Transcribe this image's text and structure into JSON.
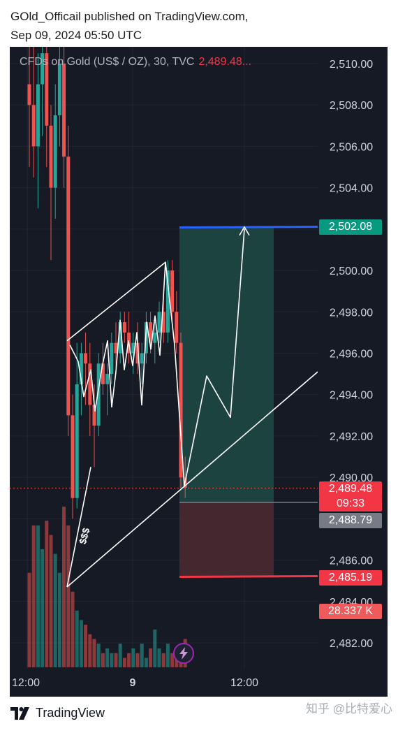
{
  "header": {
    "line1": "GOld_Officail published on TradingView.com,",
    "line2": "Sep 09, 2024 05:50 UTC"
  },
  "legend": {
    "title": "CFDs on Gold (US$ / OZ), 30, TVC",
    "price": "2,489.48..."
  },
  "labels": {
    "target": "2,502.08",
    "last_price": "2,489.48",
    "countdown": "09:33",
    "entry": "2,488.79",
    "stop": "2,485.19",
    "volume": "28.337 K",
    "dollar_marks": "$$$"
  },
  "footer": {
    "brand": "TradingView"
  },
  "watermark": "知乎 @比特爱心",
  "colors": {
    "up": "#26a69a",
    "down": "#ef5350",
    "target_line": "#2962ff",
    "stop_line": "#f23645",
    "profit_zone": "#1f4b47",
    "loss_zone": "#4a2a31",
    "last_price_bg": "#f23645",
    "entry_bg": "#787b86",
    "target_bg": "#089981"
  },
  "chart_data": {
    "type": "candlestick",
    "title": "CFDs on Gold (US$ / OZ), 30, TVC",
    "ylim": [
      2481,
      2511.5
    ],
    "y_ticks": [
      "2,482.00",
      "2,484.00",
      "2,486.00",
      "2,488.00",
      "2,490.00",
      "2,492.00",
      "2,494.00",
      "2,496.00",
      "2,498.00",
      "2,500.00",
      "2,502.00",
      "2,504.00",
      "2,506.00",
      "2,508.00",
      "2,510.00"
    ],
    "x_ticks": [
      "12:00",
      "9",
      "12:00"
    ],
    "grid": true,
    "candles": [
      {
        "o": 2509.0,
        "h": 2511.5,
        "l": 2505.0,
        "c": 2508.0
      },
      {
        "o": 2508.0,
        "h": 2511.0,
        "l": 2504.5,
        "c": 2506.0
      },
      {
        "o": 2506.0,
        "h": 2510.5,
        "l": 2503.0,
        "c": 2509.0
      },
      {
        "o": 2509.0,
        "h": 2511.0,
        "l": 2506.5,
        "c": 2510.5
      },
      {
        "o": 2510.5,
        "h": 2511.0,
        "l": 2505.0,
        "c": 2507.0
      },
      {
        "o": 2507.0,
        "h": 2508.0,
        "l": 2500.5,
        "c": 2504.0
      },
      {
        "o": 2504.0,
        "h": 2509.0,
        "l": 2502.5,
        "c": 2507.5
      },
      {
        "o": 2507.5,
        "h": 2511.0,
        "l": 2506.0,
        "c": 2510.0
      },
      {
        "o": 2510.0,
        "h": 2511.0,
        "l": 2504.0,
        "c": 2505.5
      },
      {
        "o": 2505.5,
        "h": 2507.0,
        "l": 2492.0,
        "c": 2493.0
      },
      {
        "o": 2493.0,
        "h": 2494.0,
        "l": 2488.0,
        "c": 2489.0
      },
      {
        "o": 2489.0,
        "h": 2496.5,
        "l": 2488.5,
        "c": 2494.5
      },
      {
        "o": 2494.5,
        "h": 2496.5,
        "l": 2493.0,
        "c": 2496.0
      },
      {
        "o": 2496.0,
        "h": 2497.0,
        "l": 2493.5,
        "c": 2495.5
      },
      {
        "o": 2495.5,
        "h": 2496.5,
        "l": 2492.0,
        "c": 2493.5
      },
      {
        "o": 2493.5,
        "h": 2494.5,
        "l": 2490.5,
        "c": 2492.5
      },
      {
        "o": 2492.5,
        "h": 2496.0,
        "l": 2492.0,
        "c": 2495.5
      },
      {
        "o": 2495.5,
        "h": 2496.5,
        "l": 2494.0,
        "c": 2494.5
      },
      {
        "o": 2494.5,
        "h": 2495.5,
        "l": 2493.0,
        "c": 2495.0
      },
      {
        "o": 2495.0,
        "h": 2497.0,
        "l": 2494.5,
        "c": 2496.5
      },
      {
        "o": 2496.5,
        "h": 2497.5,
        "l": 2495.0,
        "c": 2496.0
      },
      {
        "o": 2496.0,
        "h": 2498.0,
        "l": 2495.5,
        "c": 2497.5
      },
      {
        "o": 2497.5,
        "h": 2498.0,
        "l": 2496.5,
        "c": 2497.0
      },
      {
        "o": 2497.0,
        "h": 2498.0,
        "l": 2495.5,
        "c": 2496.0
      },
      {
        "o": 2496.0,
        "h": 2497.0,
        "l": 2495.0,
        "c": 2496.5
      },
      {
        "o": 2496.5,
        "h": 2497.5,
        "l": 2495.0,
        "c": 2495.5
      },
      {
        "o": 2495.5,
        "h": 2496.5,
        "l": 2494.5,
        "c": 2496.0
      },
      {
        "o": 2496.0,
        "h": 2498.0,
        "l": 2495.5,
        "c": 2497.5
      },
      {
        "o": 2497.5,
        "h": 2498.0,
        "l": 2496.0,
        "c": 2496.5
      },
      {
        "o": 2496.5,
        "h": 2497.5,
        "l": 2495.5,
        "c": 2497.0
      },
      {
        "o": 2497.0,
        "h": 2498.5,
        "l": 2496.5,
        "c": 2498.0
      },
      {
        "o": 2498.0,
        "h": 2499.0,
        "l": 2496.5,
        "c": 2497.0
      },
      {
        "o": 2497.0,
        "h": 2500.5,
        "l": 2496.5,
        "c": 2500.0
      },
      {
        "o": 2500.0,
        "h": 2500.5,
        "l": 2497.5,
        "c": 2498.0
      },
      {
        "o": 2498.0,
        "h": 2499.0,
        "l": 2496.0,
        "c": 2496.5
      },
      {
        "o": 2496.5,
        "h": 2497.0,
        "l": 2489.5,
        "c": 2490.0
      },
      {
        "o": 2490.0,
        "h": 2491.0,
        "l": 2489.0,
        "c": 2489.5
      }
    ],
    "volumes": [
      20,
      30,
      30,
      25,
      31,
      28,
      24,
      20,
      34,
      30,
      16,
      12,
      10,
      9,
      7,
      6,
      5,
      3,
      4,
      3,
      3,
      5,
      2,
      3,
      4,
      3,
      5,
      2,
      4,
      8,
      4,
      3,
      5,
      3,
      2,
      3,
      6
    ]
  }
}
